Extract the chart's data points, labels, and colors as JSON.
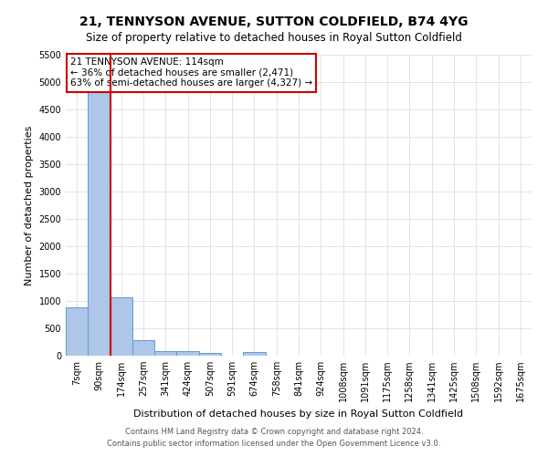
{
  "title": "21, TENNYSON AVENUE, SUTTON COLDFIELD, B74 4YG",
  "subtitle": "Size of property relative to detached houses in Royal Sutton Coldfield",
  "xlabel": "Distribution of detached houses by size in Royal Sutton Coldfield",
  "ylabel": "Number of detached properties",
  "footnote1": "Contains HM Land Registry data © Crown copyright and database right 2024.",
  "footnote2": "Contains public sector information licensed under the Open Government Licence v3.0.",
  "bar_labels": [
    "7sqm",
    "90sqm",
    "174sqm",
    "257sqm",
    "341sqm",
    "424sqm",
    "507sqm",
    "591sqm",
    "674sqm",
    "758sqm",
    "841sqm",
    "924sqm",
    "1008sqm",
    "1091sqm",
    "1175sqm",
    "1258sqm",
    "1341sqm",
    "1425sqm",
    "1508sqm",
    "1592sqm",
    "1675sqm"
  ],
  "bar_values": [
    880,
    5450,
    1060,
    280,
    90,
    80,
    50,
    0,
    60,
    0,
    0,
    0,
    0,
    0,
    0,
    0,
    0,
    0,
    0,
    0,
    0
  ],
  "bar_color": "#aec6e8",
  "bar_edge_color": "#5b9bd5",
  "vline_x": 1.5,
  "vline_color": "#cc0000",
  "ylim_max": 5500,
  "yticks": [
    0,
    500,
    1000,
    1500,
    2000,
    2500,
    3000,
    3500,
    4000,
    4500,
    5000,
    5500
  ],
  "annotation_text": "21 TENNYSON AVENUE: 114sqm\n← 36% of detached houses are smaller (2,471)\n63% of semi-detached houses are larger (4,327) →",
  "annotation_box_color": "#ffffff",
  "annotation_box_edge": "#cc0000",
  "bg_color": "#ffffff",
  "grid_color": "#d0d8e8",
  "title_fontsize": 10,
  "subtitle_fontsize": 8.5,
  "ylabel_fontsize": 8,
  "xlabel_fontsize": 8,
  "tick_fontsize": 7,
  "annot_fontsize": 7.5,
  "footnote_fontsize": 6
}
